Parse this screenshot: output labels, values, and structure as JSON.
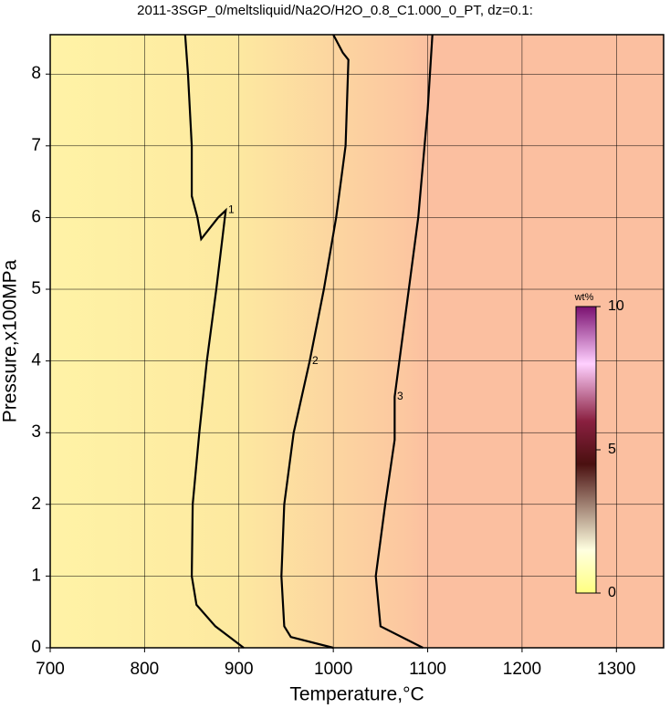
{
  "chart_data": {
    "type": "contour",
    "title": "2011-3SGP_0/meltsliquid/Na2O/H2O_0.8_C1.000_0_PT, dz=0.1:",
    "x_label": "Temperature,°C",
    "y_label": "Pressure,x100MPa",
    "xlim": [
      700,
      1350
    ],
    "ylim": [
      0,
      8.55
    ],
    "xticks": [
      700,
      800,
      900,
      1000,
      1100,
      1200,
      1300
    ],
    "yticks": [
      0,
      1,
      2,
      3,
      4,
      5,
      6,
      7,
      8
    ],
    "grid": true,
    "series": [
      {
        "name": "1",
        "color": "#000000",
        "x": [
          905,
          875,
          855,
          850,
          851,
          858,
          866,
          876,
          886,
          878,
          860,
          856,
          850,
          850,
          846,
          843
        ],
        "y": [
          0,
          0.3,
          0.6,
          1,
          2,
          3,
          4,
          5,
          6.1,
          6.0,
          5.7,
          6.0,
          6.3,
          7,
          8,
          8.55
        ]
      },
      {
        "name": "2",
        "color": "#000000",
        "x": [
          1000,
          955,
          948,
          945,
          948,
          958,
          975,
          990,
          1003,
          1013,
          1016,
          1010,
          1000
        ],
        "y": [
          0,
          0.15,
          0.3,
          1,
          2,
          3,
          4,
          5,
          6,
          7,
          8.2,
          8.3,
          8.55
        ]
      },
      {
        "name": "3",
        "color": "#000000",
        "x": [
          1095,
          1050,
          1045,
          1055,
          1065,
          1065,
          1075,
          1090,
          1100,
          1105
        ],
        "y": [
          0,
          0.3,
          1,
          2,
          2.9,
          3.5,
          4.5,
          6,
          7.5,
          8.55
        ]
      }
    ],
    "colorbar": {
      "label": "wt%",
      "clim": [
        0,
        10
      ],
      "ticks": [
        0,
        5,
        10
      ]
    }
  }
}
